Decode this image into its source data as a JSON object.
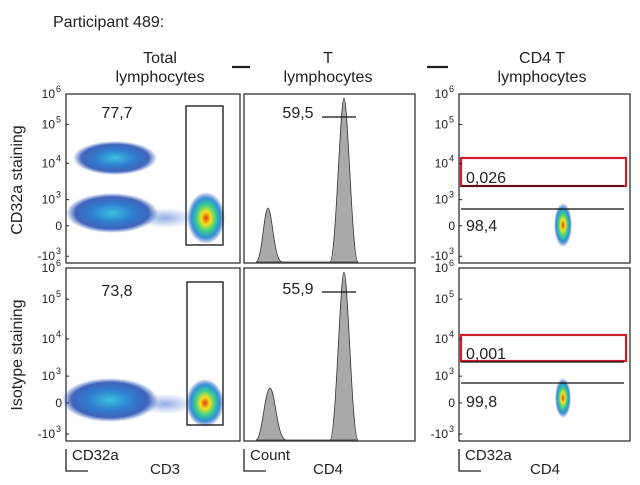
{
  "figure": {
    "title": "Participant 489:"
  },
  "columns": [
    {
      "label_line1": "Total",
      "label_line2": "lymphocytes"
    },
    {
      "label_line1": "T",
      "label_line2": "lymphocytes"
    },
    {
      "label_line1": "CD4 T",
      "label_line2": "lymphocytes"
    }
  ],
  "rows": [
    {
      "label": "CD32a staining"
    },
    {
      "label": "Isotype staining"
    }
  ],
  "colors": {
    "gate_red": "#d01f2a",
    "histogram_fill": "#a9a9a9",
    "density_low": "#1b3fa8",
    "density_mid": "#2fb0d8",
    "density_high": "#f6e21a",
    "density_peak": "#e03a1a"
  },
  "axes_labels": {
    "col1_y": "CD32a",
    "col1_x": "CD3",
    "col2_y": "Count",
    "col2_x": "CD4",
    "col3_y": "CD32a",
    "col3_x": "CD4"
  },
  "yticks": [
    "10",
    "10",
    "10",
    "10",
    "0",
    "-10"
  ],
  "ytick_exponents": [
    "6",
    "5",
    "4",
    "3",
    "",
    "3"
  ],
  "chart_data": [
    {
      "type": "scatter",
      "title": "",
      "row": "CD32a staining",
      "column": "Total lymphocytes",
      "xlabel": "CD3",
      "ylabel": "CD32a",
      "scale": "biexponential",
      "gate_label": "77,7",
      "populations": [
        {
          "name": "CD3- CD32a+",
          "cd3": "low",
          "cd32a": "~10^4"
        },
        {
          "name": "CD3- CD32a-",
          "cd3": "low",
          "cd32a": "~10^2.5"
        },
        {
          "name": "CD3+ CD32a-",
          "cd3": "high",
          "cd32a": "~0"
        }
      ]
    },
    {
      "type": "bar",
      "title": "",
      "row": "CD32a staining",
      "column": "T lymphocytes",
      "xlabel": "CD4",
      "ylabel": "Count",
      "gate_label": "59,5",
      "peaks": [
        {
          "position": "CD4-",
          "relative_height": 0.38
        },
        {
          "position": "CD4+",
          "relative_height": 1.0
        }
      ]
    },
    {
      "type": "scatter",
      "title": "",
      "row": "CD32a staining",
      "column": "CD4 T lymphocytes",
      "xlabel": "CD4",
      "ylabel": "CD32a",
      "gates": [
        {
          "label": "0,026",
          "highlight": true
        },
        {
          "label": "98,4",
          "highlight": false
        }
      ]
    },
    {
      "type": "scatter",
      "title": "",
      "row": "Isotype staining",
      "column": "Total lymphocytes",
      "xlabel": "CD3",
      "ylabel": "CD32a",
      "gate_label": "73,8"
    },
    {
      "type": "bar",
      "title": "",
      "row": "Isotype staining",
      "column": "T lymphocytes",
      "xlabel": "CD4",
      "ylabel": "Count",
      "gate_label": "55,9",
      "peaks": [
        {
          "position": "CD4-",
          "relative_height": 0.3
        },
        {
          "position": "CD4+",
          "relative_height": 1.0
        }
      ]
    },
    {
      "type": "scatter",
      "title": "",
      "row": "Isotype staining",
      "column": "CD4 T lymphocytes",
      "xlabel": "CD4",
      "ylabel": "CD32a",
      "gates": [
        {
          "label": "0,001",
          "highlight": true
        },
        {
          "label": "99,8",
          "highlight": false
        }
      ]
    }
  ]
}
